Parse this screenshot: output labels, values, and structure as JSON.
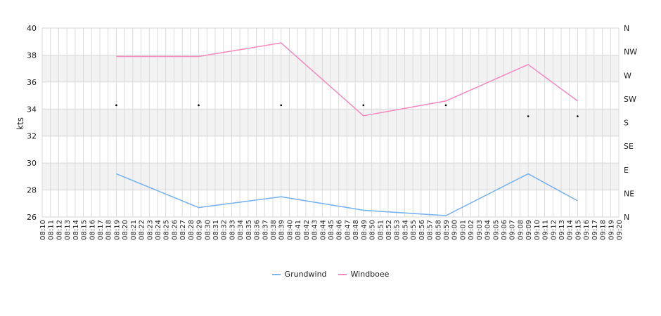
{
  "chart_data": {
    "type": "line",
    "ylabel": "kts",
    "ylim": [
      26,
      40
    ],
    "y_ticks": [
      "26",
      "28",
      "30",
      "32",
      "34",
      "36",
      "38",
      "40"
    ],
    "y2_ticks": [
      "N",
      "NE",
      "E",
      "SE",
      "S",
      "SW",
      "W",
      "NW",
      "N"
    ],
    "grid": true,
    "legend_position": "bottom-center",
    "x": [
      "08:10",
      "08:11",
      "08:12",
      "08:13",
      "08:14",
      "08:15",
      "08:16",
      "08:17",
      "08:18",
      "08:19",
      "08:20",
      "08:21",
      "08:22",
      "08:23",
      "08:24",
      "08:25",
      "08:26",
      "08:27",
      "08:28",
      "08:29",
      "08:30",
      "08:31",
      "08:32",
      "08:33",
      "08:34",
      "08:35",
      "08:36",
      "08:37",
      "08:38",
      "08:39",
      "08:40",
      "08:41",
      "08:42",
      "08:43",
      "08:44",
      "08:45",
      "08:46",
      "08:47",
      "08:48",
      "08:49",
      "08:50",
      "08:51",
      "08:52",
      "08:53",
      "08:54",
      "08:55",
      "08:56",
      "08:57",
      "08:58",
      "08:59",
      "09:00",
      "09:01",
      "09:02",
      "09:03",
      "09:04",
      "09:05",
      "09:06",
      "09:07",
      "09:08",
      "09:09",
      "09:10",
      "09:11",
      "09:12",
      "09:13",
      "09:14",
      "09:15",
      "09:16",
      "09:17",
      "09:18",
      "09:19",
      "09:20"
    ],
    "series": [
      {
        "name": "Grundwind",
        "color": "#7cb5ec",
        "points": [
          {
            "x": "08:19",
            "y": 29.2
          },
          {
            "x": "08:29",
            "y": 26.7
          },
          {
            "x": "08:39",
            "y": 27.5
          },
          {
            "x": "08:49",
            "y": 26.5
          },
          {
            "x": "08:59",
            "y": 26.1
          },
          {
            "x": "09:09",
            "y": 29.2
          },
          {
            "x": "09:15",
            "y": 27.2
          }
        ]
      },
      {
        "name": "Windboee",
        "color": "#f28fbf",
        "points": [
          {
            "x": "08:19",
            "y": 37.9
          },
          {
            "x": "08:29",
            "y": 37.9
          },
          {
            "x": "08:39",
            "y": 38.9
          },
          {
            "x": "08:49",
            "y": 33.5
          },
          {
            "x": "08:59",
            "y": 34.6
          },
          {
            "x": "09:09",
            "y": 37.3
          },
          {
            "x": "09:15",
            "y": 34.6
          }
        ]
      }
    ],
    "direction_points": [
      {
        "x": "08:19",
        "dir": 213
      },
      {
        "x": "08:29",
        "dir": 213
      },
      {
        "x": "08:39",
        "dir": 213
      },
      {
        "x": "08:49",
        "dir": 213
      },
      {
        "x": "08:59",
        "dir": 213
      },
      {
        "x": "09:09",
        "dir": 192
      },
      {
        "x": "09:15",
        "dir": 192
      }
    ]
  }
}
